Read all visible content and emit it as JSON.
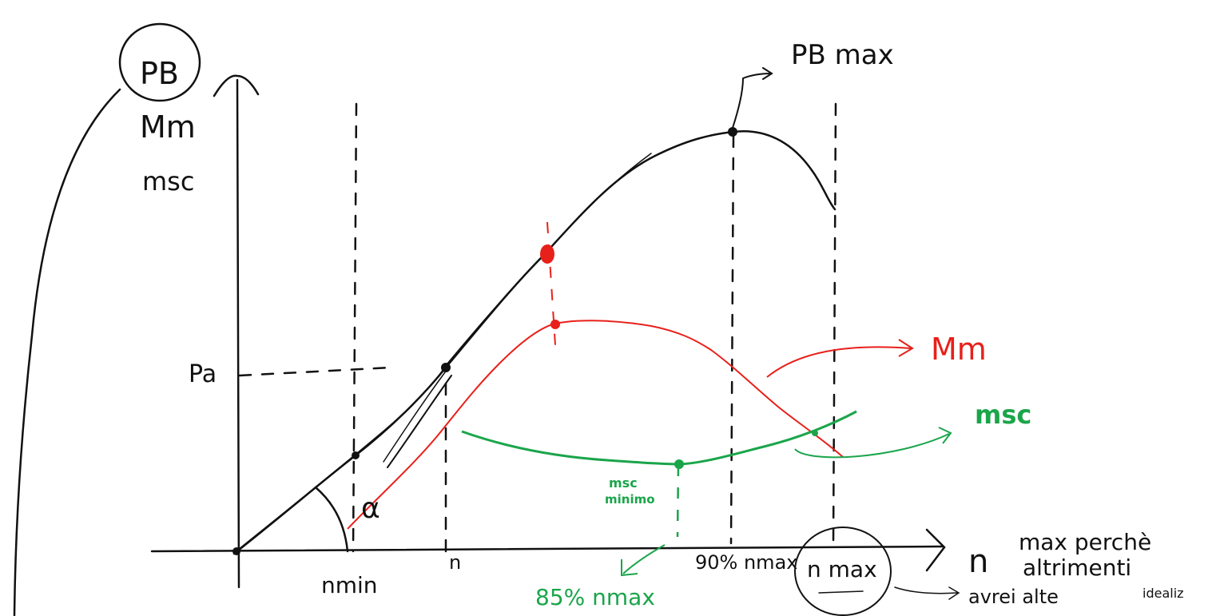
{
  "labels": {
    "y_axis_top": "PB",
    "y_axis_mid": "Mm",
    "y_axis_bottom": "msc",
    "pa": "Pa",
    "pb_max": "PB max",
    "mm_curve": "Mm",
    "msc_curve": "msc",
    "msc_min_1": "msc",
    "msc_min_2": "minimo",
    "n_85": "85% nmax",
    "n_min": "nmin",
    "n": "n",
    "n_90": "90% nmax",
    "n_max": "n max",
    "x_axis": "n",
    "alpha": "α",
    "note_1": "max perchè",
    "note_2": "altrimenti",
    "note_3": "avrei alte",
    "note_4": "idealiz"
  }
}
